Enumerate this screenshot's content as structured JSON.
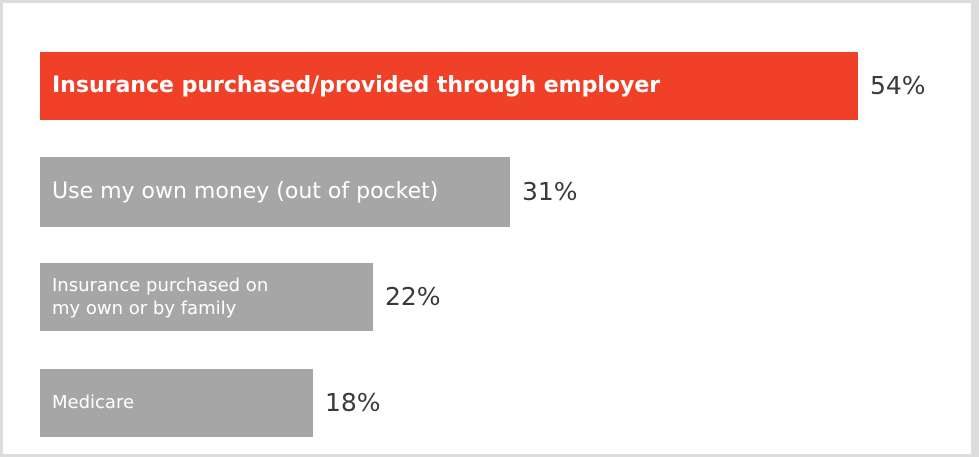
{
  "chart_data": {
    "type": "bar",
    "orientation": "horizontal",
    "categories": [
      "Insurance purchased/provided through employer",
      "Use my own money (out of pocket)",
      "Insurance purchased on my own or by family",
      "Medicare"
    ],
    "label_lines": [
      [
        "Insurance purchased/provided through employer"
      ],
      [
        "Use my own money (out of pocket)"
      ],
      [
        "Insurance purchased on",
        "my own or by family"
      ],
      [
        "Medicare"
      ]
    ],
    "values": [
      54,
      31,
      22,
      18
    ],
    "value_labels": [
      "54%",
      "31%",
      "22%",
      "18%"
    ],
    "unit": "%",
    "colors": [
      "#f04128",
      "#a6a6a6",
      "#a6a6a6",
      "#a6a6a6"
    ],
    "highlight_index": 0,
    "grid": false,
    "legend": "none"
  }
}
